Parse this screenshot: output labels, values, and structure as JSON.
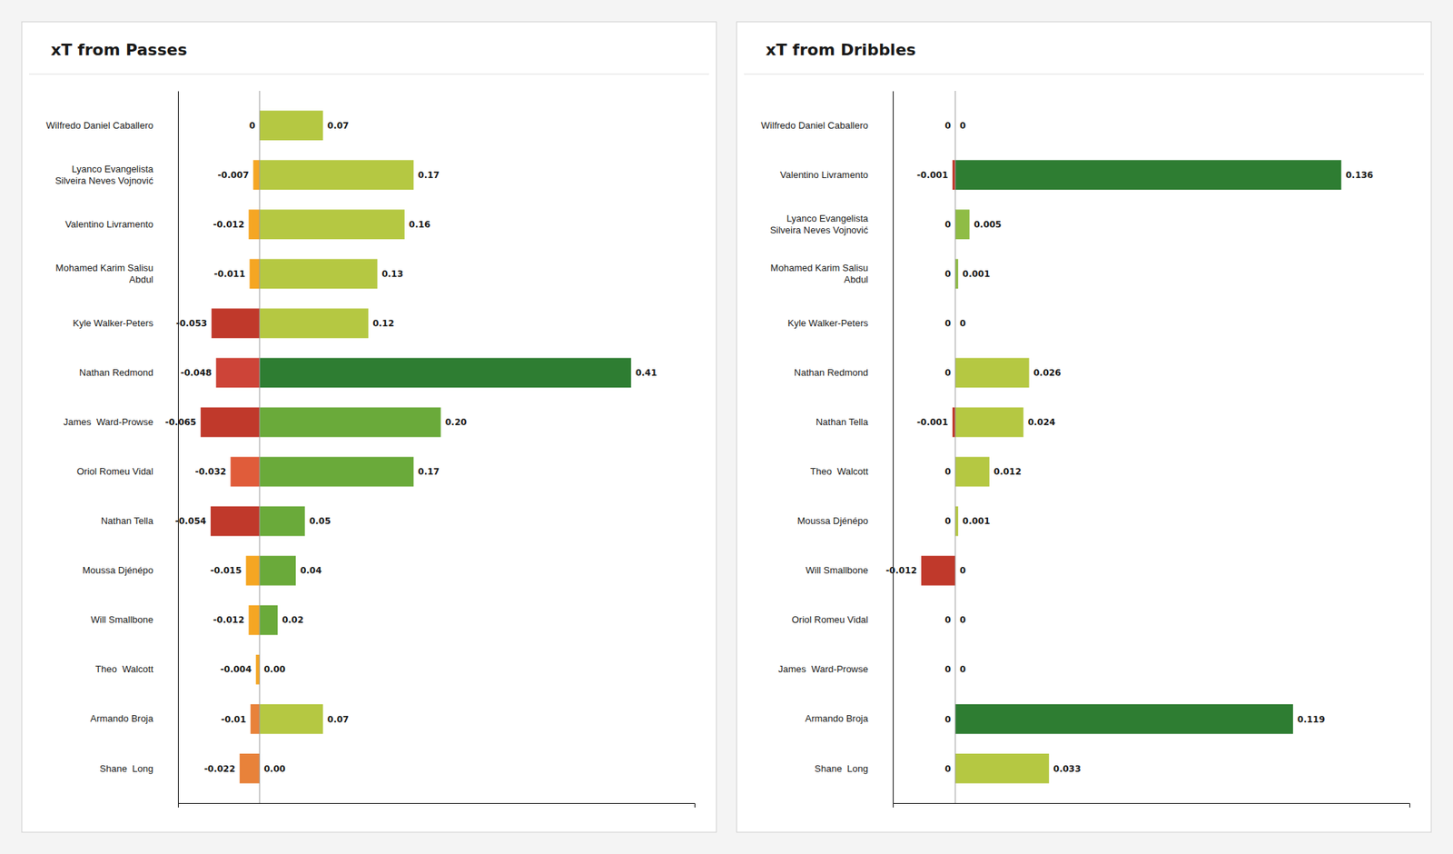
{
  "chart_data": [
    {
      "type": "bar",
      "orientation": "horizontal",
      "title": "xT from Passes",
      "categories": [
        "Wilfredo Daniel Caballero",
        "Lyanco Evangelista\nSilveira Neves Vojnović",
        "Valentino Livramento",
        "Mohamed Karim Salisu\nAbdul",
        "Kyle Walker-Peters",
        "Nathan Redmond",
        "James  Ward-Prowse",
        "Oriol Romeu Vidal",
        "Nathan Tella",
        "Moussa Djénépo",
        "Will Smallbone",
        "Theo  Walcott",
        "Armando Broja",
        "Shane  Long"
      ],
      "series": [
        {
          "values": [
            0,
            -0.007,
            -0.012,
            -0.011,
            -0.053,
            -0.048,
            -0.065,
            -0.032,
            -0.054,
            -0.015,
            -0.012,
            -0.004,
            -0.01,
            -0.022
          ],
          "value_labels": [
            "0",
            "-0.007",
            "-0.012",
            "-0.011",
            "-0.053",
            "-0.048",
            "-0.065",
            "-0.032",
            "-0.054",
            "-0.015",
            "-0.012",
            "-0.004",
            "-0.01",
            "-0.022"
          ],
          "colors": [
            "#f5a623",
            "#f5a623",
            "#f5a623",
            "#f5a623",
            "#c0392b",
            "#cd4438",
            "#c0392b",
            "#e05c3a",
            "#c0392b",
            "#f5a623",
            "#f5a623",
            "#f5a623",
            "#e8823a",
            "#e8823a"
          ]
        },
        {
          "values": [
            0.07,
            0.17,
            0.16,
            0.13,
            0.12,
            0.41,
            0.2,
            0.17,
            0.05,
            0.04,
            0.02,
            0,
            0.07,
            0
          ],
          "value_labels": [
            "0.07",
            "0.17",
            "0.16",
            "0.13",
            "0.12",
            "0.41",
            "0.20",
            "0.17",
            "0.05",
            "0.04",
            "0.02",
            "0.00",
            "0.07",
            "0.00"
          ],
          "colors": [
            "#b5c842",
            "#b5c842",
            "#b5c842",
            "#b5c842",
            "#b5c842",
            "#2e7d32",
            "#6aaa3a",
            "#6aaa3a",
            "#6aaa3a",
            "#6aaa3a",
            "#6aaa3a",
            "#6aaa3a",
            "#b5c842",
            "#b5c842"
          ]
        }
      ],
      "xlim": [
        -0.09,
        0.48
      ],
      "data_labels": true,
      "tick_labels": "y",
      "grid": false
    },
    {
      "type": "bar",
      "orientation": "horizontal",
      "title": "xT from Dribbles",
      "categories": [
        "Wilfredo Daniel Caballero",
        "Valentino Livramento",
        "Lyanco Evangelista\nSilveira Neves Vojnović",
        "Mohamed Karim Salisu\nAbdul",
        "Kyle Walker-Peters",
        "Nathan Redmond",
        "Nathan Tella",
        "Theo  Walcott",
        "Moussa Djénépo",
        "Will Smallbone",
        "Oriol Romeu Vidal",
        "James  Ward-Prowse",
        "Armando Broja",
        "Shane  Long"
      ],
      "series": [
        {
          "values": [
            0,
            -0.001,
            0,
            0,
            0,
            0,
            -0.001,
            0,
            0,
            -0.012,
            0,
            0,
            0,
            0
          ],
          "value_labels": [
            "0",
            "-0.001",
            "0",
            "0",
            "0",
            "0",
            "-0.001",
            "0",
            "0",
            "-0.012",
            "0",
            "0",
            "0",
            "0"
          ],
          "colors": [
            "#c0392b",
            "#c0392b",
            "#c0392b",
            "#c0392b",
            "#c0392b",
            "#c0392b",
            "#c0392b",
            "#c0392b",
            "#c0392b",
            "#c0392b",
            "#c0392b",
            "#c0392b",
            "#c0392b",
            "#c0392b"
          ]
        },
        {
          "values": [
            0,
            0.136,
            0.005,
            0.001,
            0,
            0.026,
            0.024,
            0.012,
            0.001,
            0,
            0,
            0,
            0.119,
            0.033
          ],
          "value_labels": [
            "0",
            "0.136",
            "0.005",
            "0.001",
            "0",
            "0.026",
            "0.024",
            "0.012",
            "0.001",
            "0",
            "0",
            "0",
            "0.119",
            "0.033"
          ],
          "colors": [
            "#2e7d32",
            "#2e7d32",
            "#8fbc45",
            "#8fbc45",
            "#2e7d32",
            "#b5c842",
            "#b5c842",
            "#b5c842",
            "#b5c842",
            "#2e7d32",
            "#2e7d32",
            "#2e7d32",
            "#2e7d32",
            "#b5c842"
          ]
        }
      ],
      "xlim": [
        -0.022,
        0.16
      ],
      "data_labels": true,
      "tick_labels": "y",
      "grid": false
    }
  ]
}
